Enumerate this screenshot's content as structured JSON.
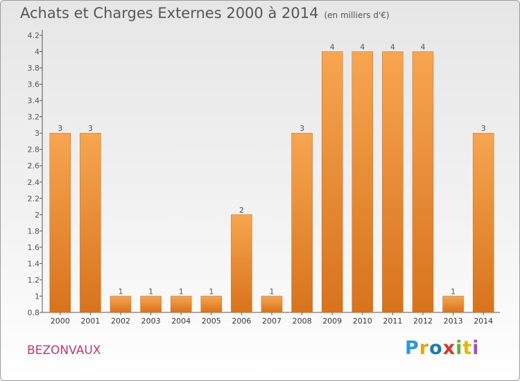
{
  "header": {
    "title": "Achats et Charges Externes 2000 à 2014",
    "subtitle": "(en milliers d'€)"
  },
  "footer": {
    "commune": "BEZONVAUX",
    "logo_letters": [
      "P",
      "r",
      "o",
      "x",
      "i",
      "t",
      "i"
    ]
  },
  "colors": {
    "bar_top": "#f7a550",
    "bar_bottom": "#d8731c",
    "axis": "#555555",
    "grid": "#cccccc",
    "text": "#555555"
  },
  "chart_data": {
    "type": "bar",
    "title": "Achats et Charges Externes 2000 à 2014",
    "subtitle": "(en milliers d'€)",
    "xlabel": "",
    "ylabel": "",
    "categories": [
      "2000",
      "2001",
      "2002",
      "2003",
      "2004",
      "2005",
      "2006",
      "2007",
      "2008",
      "2009",
      "2010",
      "2011",
      "2012",
      "2013",
      "2014"
    ],
    "values": [
      3,
      3,
      1,
      1,
      1,
      1,
      2,
      1,
      3,
      4,
      4,
      4,
      4,
      1,
      3
    ],
    "data_labels": [
      "3",
      "3",
      "1",
      "1",
      "1",
      "1",
      "2",
      "1",
      "3",
      "4",
      "4",
      "4",
      "4",
      "1",
      "3"
    ],
    "ylim": [
      0.8,
      4.2
    ],
    "yticks": [
      "0.8",
      "1",
      "1.2",
      "1.4",
      "1.6",
      "1.8",
      "2",
      "2.2",
      "2.4",
      "2.6",
      "2.8",
      "3",
      "3.2",
      "3.4",
      "3.6",
      "3.8",
      "4",
      "4.2"
    ],
    "grid": false,
    "legend": "none"
  }
}
